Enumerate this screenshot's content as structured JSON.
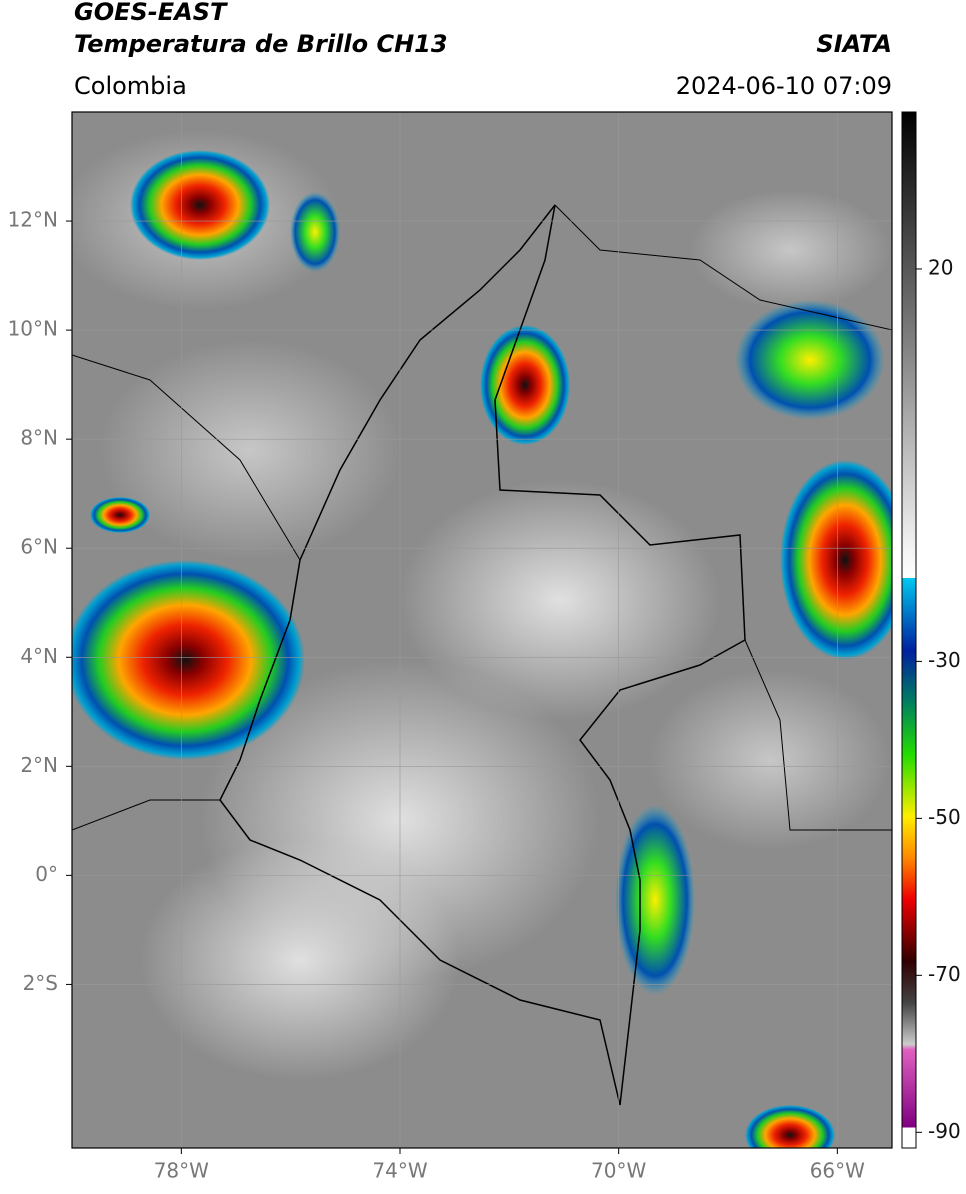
{
  "header": {
    "title": "GOES-EAST",
    "subtitle": "Temperatura de Brillo CH13",
    "region": "Colombia",
    "source": "SIATA",
    "datetime": "2024-06-10 07:09"
  },
  "map": {
    "lonlim": [
      -80,
      -65
    ],
    "latlim": [
      -5,
      14
    ],
    "lat_ticks": [
      {
        "value": 12,
        "label": "12°N"
      },
      {
        "value": 10,
        "label": "10°N"
      },
      {
        "value": 8,
        "label": "8°N"
      },
      {
        "value": 6,
        "label": "6°N"
      },
      {
        "value": 4,
        "label": "4°N"
      },
      {
        "value": 2,
        "label": "2°N"
      },
      {
        "value": 0,
        "label": "0°"
      },
      {
        "value": -2,
        "label": "2°S"
      }
    ],
    "lon_ticks": [
      {
        "value": -78,
        "label": "78°W"
      },
      {
        "value": -74,
        "label": "74°W"
      },
      {
        "value": -70,
        "label": "70°W"
      },
      {
        "value": -66,
        "label": "66°W"
      }
    ],
    "grid": true
  },
  "colorbar": {
    "lim": [
      -92,
      40
    ],
    "ticks": [
      20,
      -30,
      -50,
      -70,
      -90
    ]
  }
}
